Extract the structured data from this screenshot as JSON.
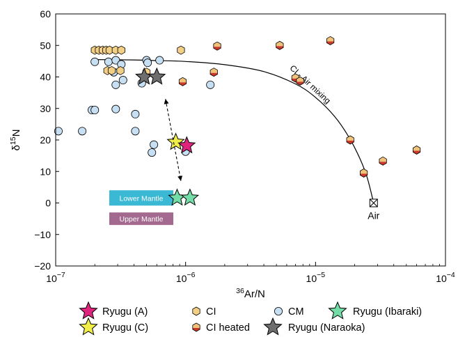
{
  "chart_data": {
    "type": "scatter",
    "x_scale": "log",
    "xlim": [
      1e-07,
      0.0001
    ],
    "ylim": [
      -20,
      60
    ],
    "xlabel_sup": "36",
    "xlabel_main": "Ar/N",
    "ylabel_main": "δ",
    "ylabel_sup": "15",
    "ylabel_end": "N",
    "x_ticks": [
      {
        "value": 1e-07,
        "base": "10",
        "exp": "−7"
      },
      {
        "value": 1e-06,
        "base": "10",
        "exp": "−6"
      },
      {
        "value": 1e-05,
        "base": "10",
        "exp": "−5"
      },
      {
        "value": 0.0001,
        "base": "10",
        "exp": "−4"
      }
    ],
    "y_ticks": [
      {
        "value": 60,
        "label": "60"
      },
      {
        "value": 50,
        "label": "50"
      },
      {
        "value": 40,
        "label": "40"
      },
      {
        "value": 30,
        "label": "30"
      },
      {
        "value": 20,
        "label": "20"
      },
      {
        "value": 10,
        "label": "10"
      },
      {
        "value": 0,
        "label": "0"
      },
      {
        "value": -10,
        "label": "−10"
      },
      {
        "value": -20,
        "label": "−20"
      }
    ],
    "colors": {
      "ci": "#f2cf85",
      "ci_heated_top": "#f0c27a",
      "ci_heated_bottom": "#c93a2a",
      "cm": "#c7dff2",
      "ryugu_a": "#e0247d",
      "ryugu_c": "#f2ee48",
      "ryugu_ibaraki": "#74dca6",
      "ryugu_naraoka": "#6e6e6e",
      "lower_mantle": "#3ab8d4",
      "upper_mantle": "#a3698f",
      "mixing_curve": "#000000"
    },
    "series": [
      {
        "name": "CI",
        "marker": "hexagon",
        "points": [
          [
            2e-07,
            48.5
          ],
          [
            2.15e-07,
            48.5
          ],
          [
            2.3e-07,
            48.5
          ],
          [
            2.45e-07,
            48.5
          ],
          [
            2.6e-07,
            48.5
          ],
          [
            2.9e-07,
            48.5
          ],
          [
            3.2e-07,
            48.5
          ],
          [
            2.5e-07,
            42
          ],
          [
            2.7e-07,
            42
          ],
          [
            3.15e-07,
            42
          ],
          [
            5e-07,
            41.5
          ],
          [
            9.2e-07,
            48.5
          ]
        ]
      },
      {
        "name": "CI heated",
        "marker": "hexagon-split",
        "points": [
          [
            9.5e-07,
            38.5
          ],
          [
            1.65e-06,
            41.5
          ],
          [
            1.75e-06,
            49.8
          ],
          [
            5.3e-06,
            50
          ],
          [
            7e-06,
            39.7
          ],
          [
            7.6e-06,
            38.7
          ],
          [
            1.3e-05,
            51.5
          ],
          [
            1.85e-05,
            20
          ],
          [
            2.35e-05,
            9.5
          ],
          [
            3.3e-05,
            13.3
          ],
          [
            6e-05,
            16.8
          ]
        ]
      },
      {
        "name": "CM",
        "marker": "circle",
        "points": [
          [
            1.05e-07,
            22.8
          ],
          [
            1.6e-07,
            22.8
          ],
          [
            1.9e-07,
            29.5
          ],
          [
            2e-07,
            29.5
          ],
          [
            2e-07,
            44.8
          ],
          [
            2.55e-07,
            44.8
          ],
          [
            2.9e-07,
            45.3
          ],
          [
            3.2e-07,
            44
          ],
          [
            2.8e-07,
            41.5
          ],
          [
            3.3e-07,
            39
          ],
          [
            2.9e-07,
            37.5
          ],
          [
            2.9e-07,
            29.8
          ],
          [
            4.1e-07,
            28.2
          ],
          [
            4.1e-07,
            22.8
          ],
          [
            4.6e-07,
            38
          ],
          [
            5e-07,
            45.3
          ],
          [
            5.1e-07,
            44.5
          ],
          [
            6.3e-07,
            45.3
          ],
          [
            5.7e-07,
            18.5
          ],
          [
            5.5e-07,
            16
          ],
          [
            1e-06,
            16.3
          ],
          [
            1.55e-06,
            37.5
          ]
        ]
      },
      {
        "name": "Ryugu (A)",
        "marker": "star",
        "points": [
          [
            1.02e-06,
            18.2
          ]
        ]
      },
      {
        "name": "Ryugu (C)",
        "marker": "star",
        "points": [
          [
            8.4e-07,
            19.3
          ]
        ]
      },
      {
        "name": "Ryugu (Ibaraki)",
        "marker": "star",
        "points": [
          [
            8.6e-07,
            1.6
          ],
          [
            1.08e-06,
            1.6
          ]
        ]
      },
      {
        "name": "Ryugu (Naraoka)",
        "marker": "star",
        "points": [
          [
            4.8e-07,
            40
          ],
          [
            6e-07,
            40
          ]
        ]
      }
    ],
    "mixing_curve": [
      [
        2e-07,
        45.5
      ],
      [
        4e-07,
        45.4
      ],
      [
        6e-07,
        45.2
      ],
      [
        1e-06,
        44.9
      ],
      [
        2e-06,
        43.9
      ],
      [
        4e-06,
        41.7
      ],
      [
        7e-06,
        37.8
      ],
      [
        1e-05,
        33.5
      ],
      [
        1.4e-05,
        27.5
      ],
      [
        1.8e-05,
        21
      ],
      [
        2.2e-05,
        14
      ],
      [
        2.5e-05,
        8
      ],
      [
        2.8e-05,
        0
      ]
    ],
    "air_point": [
      2.8e-05,
      0
    ],
    "arrow": {
      "from": [
        7e-07,
        33
      ],
      "to": [
        9.2e-07,
        7
      ]
    },
    "annotations": {
      "mixing_label": "CI - Air mixing",
      "air_label": "Air",
      "lower_mantle_label": "Lower Mantle",
      "upper_mantle_label": "Upper Mantle"
    },
    "legend": {
      "placement": "bottom",
      "entries": [
        {
          "label": "Ryugu (A)",
          "marker": "star",
          "color": "#e0247d"
        },
        {
          "label": "CI",
          "marker": "hexagon",
          "color": "#f2cf85"
        },
        {
          "label": "CM",
          "marker": "circle",
          "color": "#c7dff2"
        },
        {
          "label": "Ryugu (Ibaraki)",
          "marker": "star",
          "color": "#74dca6"
        },
        {
          "label": "Ryugu (C)",
          "marker": "star",
          "color": "#f2ee48"
        },
        {
          "label": "CI heated",
          "marker": "hexagon-split",
          "color": "#c93a2a"
        },
        {
          "label": "Ryugu (Naraoka)",
          "marker": "star",
          "color": "#6e6e6e"
        }
      ]
    }
  }
}
